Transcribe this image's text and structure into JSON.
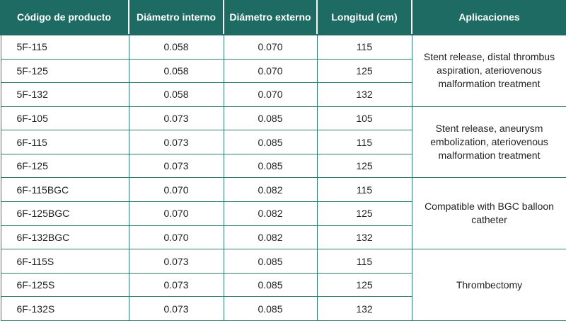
{
  "table": {
    "headers": [
      "Código de producto",
      "Diámetro interno",
      "Diámetro externo",
      "Longitud (cm)",
      "Aplicaciones"
    ],
    "groups": [
      {
        "application": "Stent release, distal thrombus aspiration, ateriovenous malformation treatment",
        "rows": [
          [
            "5F-115",
            "0.058",
            "0.070",
            "115"
          ],
          [
            "5F-125",
            "0.058",
            "0.070",
            "125"
          ],
          [
            "5F-132",
            "0.058",
            "0.070",
            "132"
          ]
        ]
      },
      {
        "application": "Stent release, aneurysm embolization, ateriovenous malformation treatment",
        "rows": [
          [
            "6F-105",
            "0.073",
            "0.085",
            "105"
          ],
          [
            "6F-115",
            "0.073",
            "0.085",
            "115"
          ],
          [
            "6F-125",
            "0.073",
            "0.085",
            "125"
          ]
        ]
      },
      {
        "application": "Compatible with BGC balloon catheter",
        "rows": [
          [
            "6F-115BGC",
            "0.070",
            "0.082",
            "115"
          ],
          [
            "6F-125BGC",
            "0.070",
            "0.082",
            "125"
          ],
          [
            "6F-132BGC",
            "0.070",
            "0.082",
            "132"
          ]
        ]
      },
      {
        "application": "Thrombectomy",
        "rows": [
          [
            "6F-115S",
            "0.073",
            "0.085",
            "115"
          ],
          [
            "6F-125S",
            "0.073",
            "0.085",
            "125"
          ],
          [
            "6F-132S",
            "0.073",
            "0.085",
            "132"
          ]
        ]
      }
    ]
  }
}
